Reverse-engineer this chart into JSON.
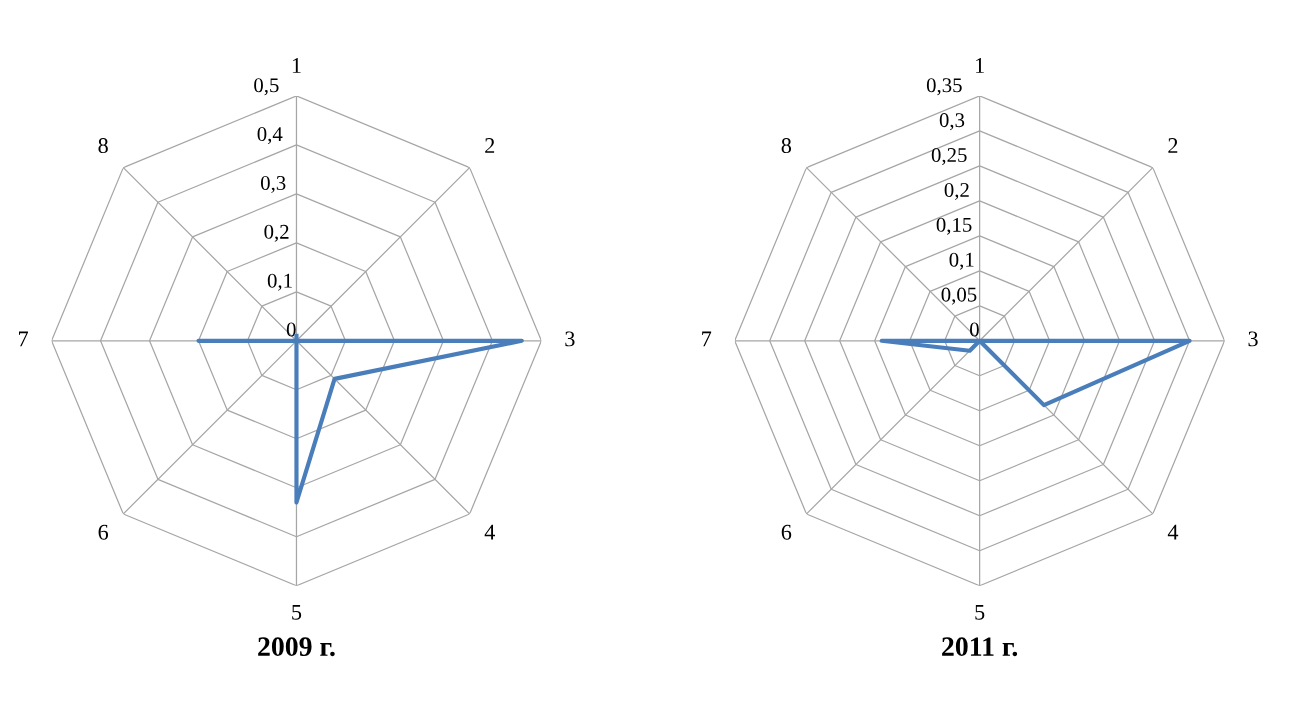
{
  "chart_data": [
    {
      "type": "radar",
      "title": "2009 г.",
      "categories": [
        "1",
        "2",
        "3",
        "4",
        "5",
        "6",
        "7",
        "8"
      ],
      "series": [
        {
          "color": "#4a7ebb",
          "values": [
            0.01,
            0,
            0.46,
            0.11,
            0.33,
            0,
            0.2,
            0
          ]
        }
      ],
      "ylim": [
        0,
        0.5
      ],
      "yticks": [
        0,
        {
          "value": 0.1,
          "label": "0,1"
        },
        {
          "value": 0.2,
          "label": "0,2"
        },
        {
          "value": 0.3,
          "label": "0,3"
        },
        {
          "value": 0.4,
          "label": "0,4"
        },
        {
          "value": 0.5,
          "label": "0,5"
        }
      ],
      "grid": true
    },
    {
      "type": "radar",
      "title": "2011 г.",
      "categories": [
        "1",
        "2",
        "3",
        "4",
        "5",
        "6",
        "7",
        "8"
      ],
      "series": [
        {
          "color": "#4a7ebb",
          "values": [
            0,
            0,
            0.3,
            0.13,
            0,
            0.02,
            0.14,
            0
          ]
        }
      ],
      "ylim": [
        0,
        0.35
      ],
      "yticks": [
        0,
        {
          "value": 0.05,
          "label": "0,05"
        },
        {
          "value": 0.1,
          "label": "0,1"
        },
        {
          "value": 0.15,
          "label": "0,15"
        },
        {
          "value": 0.2,
          "label": "0,2"
        },
        {
          "value": 0.25,
          "label": "0,25"
        },
        {
          "value": 0.3,
          "label": "0,3"
        },
        {
          "value": 0.35,
          "label": "0,35"
        }
      ],
      "grid": true
    }
  ]
}
